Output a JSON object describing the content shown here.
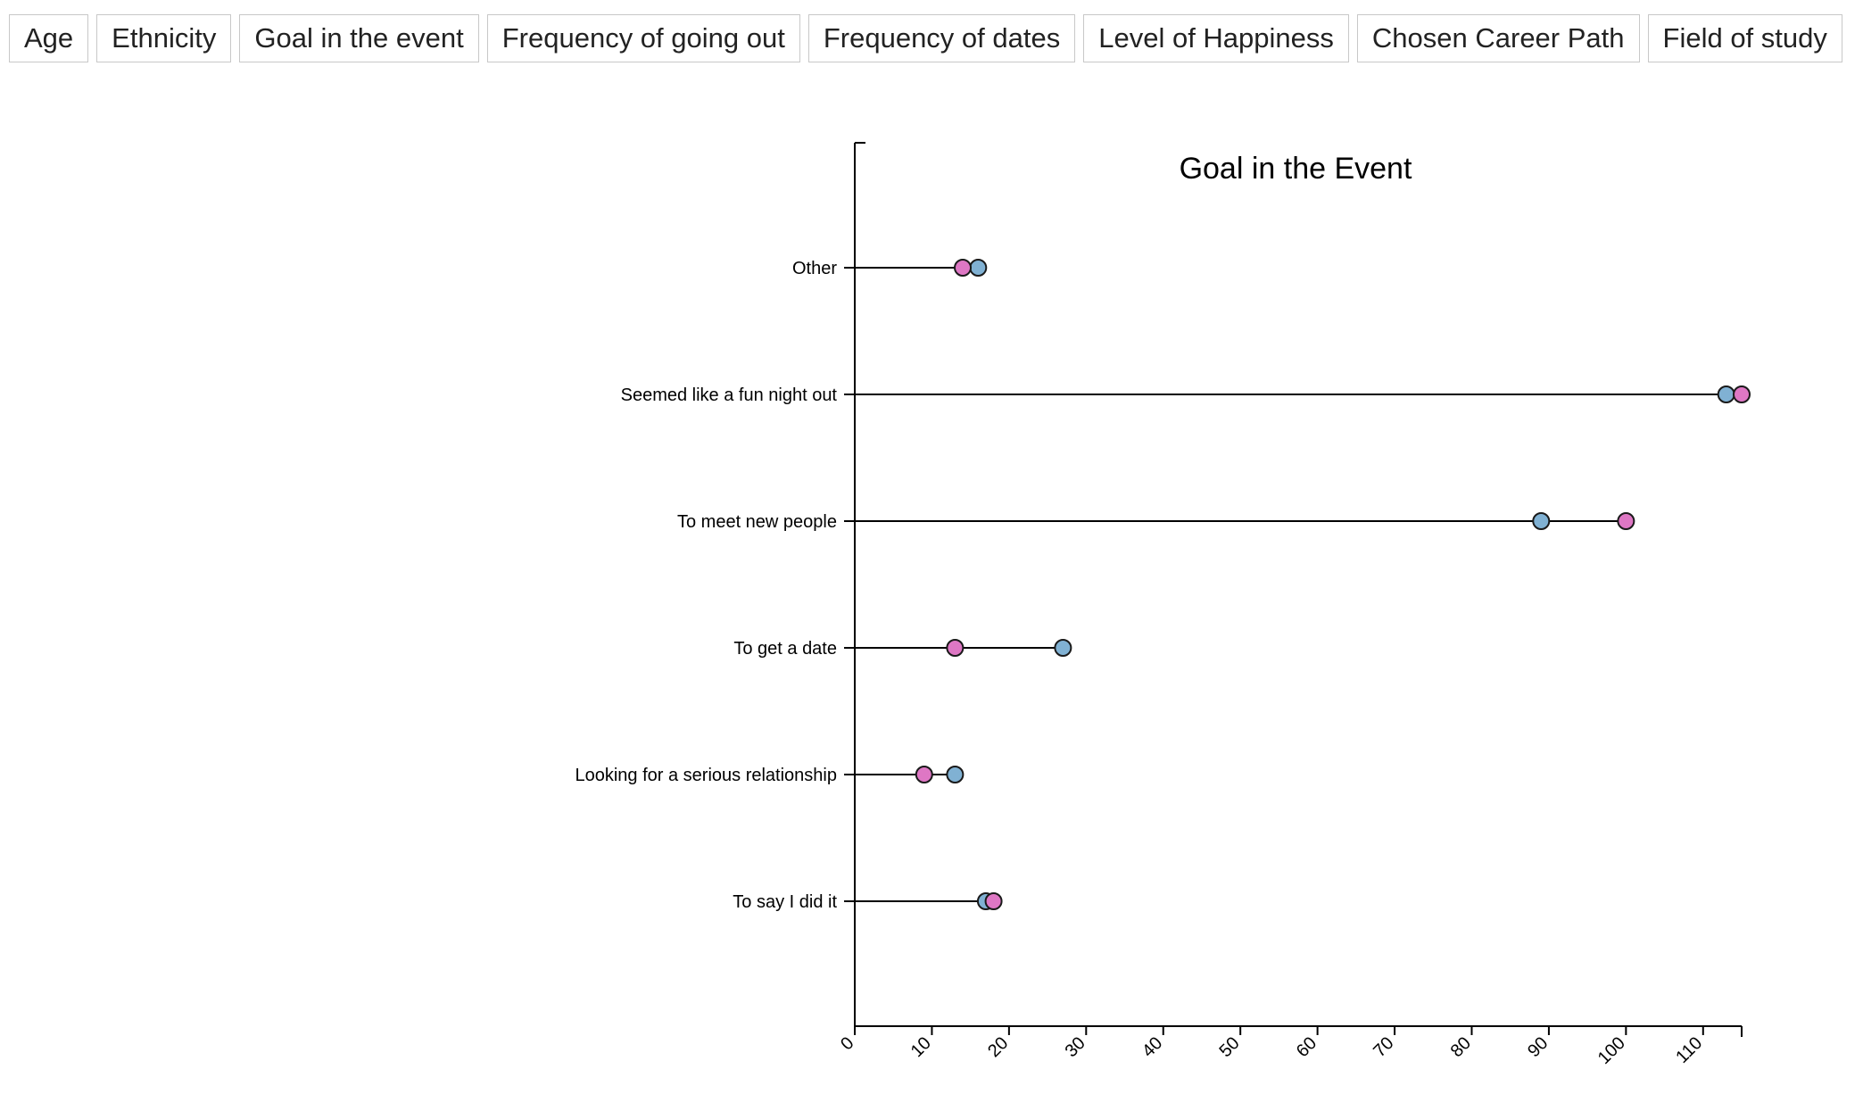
{
  "nav": {
    "buttons": [
      "Age",
      "Ethnicity",
      "Goal in the event",
      "Frequency of going out",
      "Frequency of dates",
      "Level of Happiness",
      "Chosen Career Path",
      "Field of study"
    ]
  },
  "chart_data": {
    "type": "dumbbell",
    "title": "Goal in the Event",
    "categories": [
      "Other",
      "Seemed like a fun night out",
      "To meet new people",
      "To get a date",
      "Looking for a serious relationship",
      "To say I did it"
    ],
    "series": [
      {
        "color": "#80b1d3",
        "values": [
          16,
          113,
          89,
          27,
          13,
          17
        ]
      },
      {
        "color": "#de77c4",
        "values": [
          14,
          115,
          100,
          13,
          9,
          18
        ]
      }
    ],
    "xlim": [
      0,
      115
    ],
    "xticks": [
      0,
      10,
      20,
      30,
      40,
      50,
      60,
      70,
      80,
      90,
      100,
      110
    ],
    "grid": false
  }
}
